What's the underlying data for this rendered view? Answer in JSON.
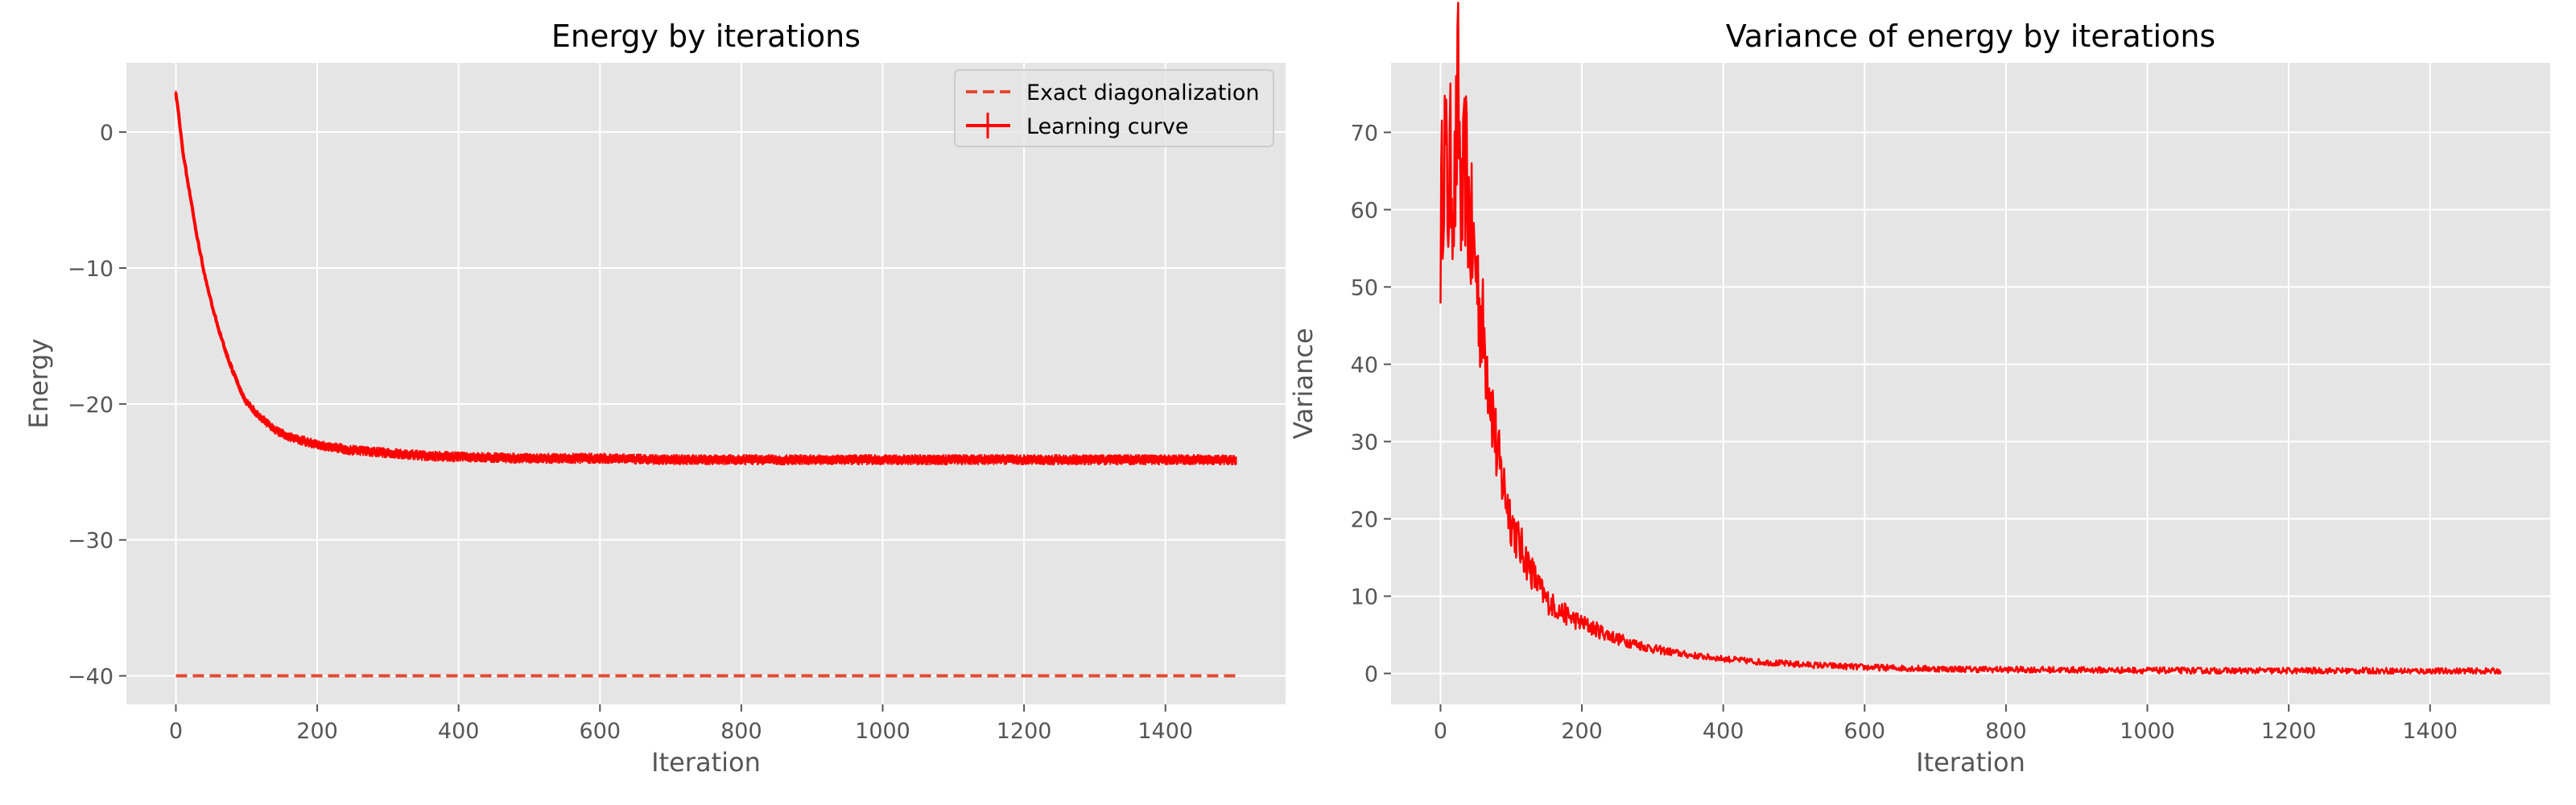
{
  "chart_data": [
    {
      "type": "line",
      "title": "Energy by iterations",
      "xlabel": "Iteration",
      "ylabel": "Energy",
      "xlim": [
        -70,
        1570
      ],
      "ylim": [
        -42.1,
        5.1
      ],
      "xticks": [
        0,
        200,
        400,
        600,
        800,
        1000,
        1200,
        1400
      ],
      "yticks": [
        0,
        -10,
        -20,
        -30,
        -40
      ],
      "grid": true,
      "legend": {
        "position": "top-right",
        "entries": [
          "Exact diagonalization",
          "Learning curve"
        ]
      },
      "series": [
        {
          "name": "Exact diagonalization",
          "color": "#e24a33",
          "linestyle": "dashed",
          "x": [
            0,
            1500
          ],
          "y": [
            -40.0,
            -40.0
          ]
        },
        {
          "name": "Learning curve",
          "color": "#ff0000",
          "linestyle": "solid-with-errorbars",
          "x": [
            0,
            10,
            20,
            30,
            40,
            50,
            60,
            70,
            80,
            90,
            100,
            120,
            140,
            160,
            180,
            200,
            250,
            300,
            350,
            400,
            500,
            600,
            700,
            800,
            900,
            1000,
            1100,
            1200,
            1300,
            1400,
            1500
          ],
          "y": [
            3.0,
            -1.5,
            -4.6,
            -7.7,
            -10.3,
            -12.5,
            -14.4,
            -16.1,
            -17.5,
            -18.8,
            -19.9,
            -21.0,
            -21.9,
            -22.4,
            -22.7,
            -23.0,
            -23.4,
            -23.6,
            -23.8,
            -23.9,
            -24.0,
            -24.0,
            -24.1,
            -24.1,
            -24.1,
            -24.1,
            -24.1,
            -24.1,
            -24.1,
            -24.1,
            -24.1
          ]
        }
      ]
    },
    {
      "type": "line",
      "title": "Variance of energy by iterations",
      "xlabel": "Iteration",
      "ylabel": "Variance",
      "xlim": [
        -70,
        1570
      ],
      "ylim": [
        -4.0,
        79.0
      ],
      "xticks": [
        0,
        200,
        400,
        600,
        800,
        1000,
        1200,
        1400
      ],
      "yticks": [
        0,
        10,
        20,
        30,
        40,
        50,
        60,
        70
      ],
      "grid": true,
      "series": [
        {
          "color": "#ff0000",
          "linestyle": "solid",
          "x": [
            0,
            5,
            10,
            15,
            20,
            25,
            30,
            35,
            40,
            45,
            50,
            55,
            60,
            65,
            70,
            75,
            80,
            90,
            100,
            110,
            120,
            130,
            140,
            150,
            170,
            200,
            250,
            300,
            350,
            400,
            450,
            500,
            600,
            700,
            800,
            900,
            1000,
            1100,
            1200,
            1300,
            1400,
            1500
          ],
          "y": [
            56,
            70,
            61,
            66,
            62,
            75,
            58,
            66,
            60,
            55,
            53,
            48,
            44,
            41,
            37,
            33,
            28,
            24,
            20,
            17,
            15,
            13,
            11,
            9.5,
            8,
            6.5,
            4.5,
            3.2,
            2.4,
            1.9,
            1.5,
            1.2,
            0.8,
            0.6,
            0.5,
            0.45,
            0.4,
            0.35,
            0.35,
            0.35,
            0.3,
            0.3
          ]
        }
      ]
    }
  ]
}
